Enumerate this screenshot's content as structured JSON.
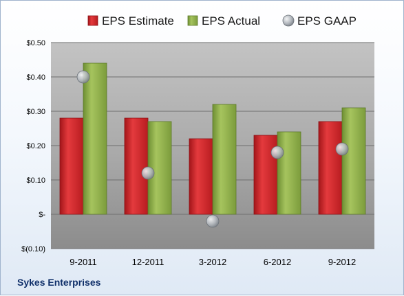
{
  "chart_data": {
    "type": "bar",
    "categories": [
      "9-2011",
      "12-2011",
      "3-2012",
      "6-2012",
      "9-2012"
    ],
    "series": [
      {
        "name": "EPS Estimate",
        "kind": "bar",
        "color": "#d62226",
        "values": [
          0.28,
          0.28,
          0.22,
          0.23,
          0.27
        ]
      },
      {
        "name": "EPS Actual",
        "kind": "bar",
        "color": "#8fb24a",
        "values": [
          0.44,
          0.27,
          0.32,
          0.24,
          0.31
        ]
      },
      {
        "name": "EPS GAAP",
        "kind": "scatter",
        "color": "#b7bcc2",
        "values": [
          0.4,
          0.12,
          -0.02,
          0.18,
          0.19
        ]
      }
    ],
    "yticks": [
      {
        "value": 0.5,
        "label": "$0.50"
      },
      {
        "value": 0.4,
        "label": "$0.40"
      },
      {
        "value": 0.3,
        "label": "$0.30"
      },
      {
        "value": 0.2,
        "label": "$0.20"
      },
      {
        "value": 0.1,
        "label": "$0.10"
      },
      {
        "value": 0.0,
        "label": "$-"
      },
      {
        "value": -0.1,
        "label": "$(0.10)"
      }
    ],
    "ylim": [
      -0.1,
      0.5
    ],
    "grid": true,
    "legend": "top"
  },
  "footer": {
    "company": "Sykes Enterprises"
  }
}
